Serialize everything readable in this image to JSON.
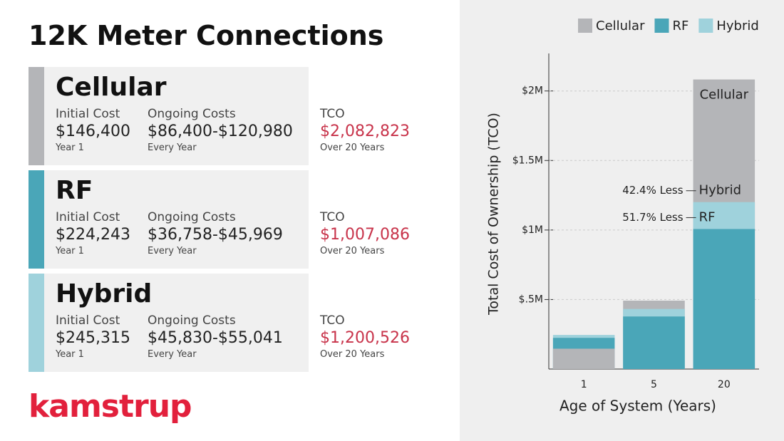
{
  "header": {
    "title": "12K Meter Connections"
  },
  "cards": [
    {
      "name": "Cellular",
      "color": "#b4b5b8",
      "initial_label": "Initial Cost",
      "initial": "$146,400",
      "initial_note": "Year 1",
      "ongoing_label": "Ongoing Costs",
      "ongoing": "$86,400-$120,980",
      "ongoing_note": "Every Year",
      "tco_label": "TCO",
      "tco": "$2,082,823",
      "tco_note": "Over 20 Years"
    },
    {
      "name": "RF",
      "color": "#4aa6b8",
      "initial_label": "Initial Cost",
      "initial": "$224,243",
      "initial_note": "Year 1",
      "ongoing_label": "Ongoing Costs",
      "ongoing": "$36,758-$45,969",
      "ongoing_note": "Every Year",
      "tco_label": "TCO",
      "tco": "$1,007,086",
      "tco_note": "Over 20 Years"
    },
    {
      "name": "Hybrid",
      "color": "#9fd2dc",
      "initial_label": "Initial Cost",
      "initial": "$245,315",
      "initial_note": "Year 1",
      "ongoing_label": "Ongoing Costs",
      "ongoing": "$45,830-$55,041",
      "ongoing_note": "Every Year",
      "tco_label": "TCO",
      "tco": "$1,200,526",
      "tco_note": "Over 20 Years"
    }
  ],
  "logo": "kamstrup",
  "chart_data": {
    "type": "bar",
    "x_label": "Age of System (Years)",
    "y_label": "Total Cost of Ownership (TCO)",
    "categories": [
      "1",
      "5",
      "20"
    ],
    "series": [
      {
        "name": "Cellular",
        "color": "#b4b5b8",
        "values": [
          146400,
          492000,
          2082823
        ]
      },
      {
        "name": "RF",
        "color": "#4aa6b8",
        "values": [
          224243,
          378000,
          1007086
        ]
      },
      {
        "name": "Hybrid",
        "color": "#9fd2dc",
        "values": [
          245315,
          432000,
          1200526
        ]
      }
    ],
    "ylim": [
      0,
      2270000
    ],
    "yticks": [
      {
        "value": 500000,
        "label": "$.5M"
      },
      {
        "value": 1000000,
        "label": "$1M"
      },
      {
        "value": 1500000,
        "label": "$1.5M"
      },
      {
        "value": 2000000,
        "label": "$2M"
      }
    ],
    "grid": true,
    "annotations": [
      {
        "text": "42.4% Less",
        "label": "Hybrid"
      },
      {
        "text": "51.7% Less",
        "label": "RF"
      },
      {
        "label": "Cellular"
      }
    ]
  }
}
